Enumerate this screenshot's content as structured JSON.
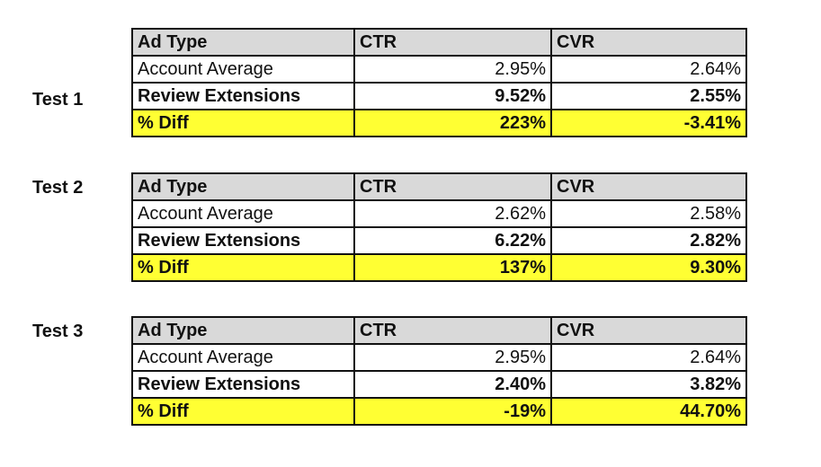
{
  "tests": [
    {
      "label": "Test 1",
      "header": {
        "ad_type": "Ad Type",
        "ctr": "CTR",
        "cvr": "CVR"
      },
      "rows": [
        {
          "ad_type": "Account Average",
          "ctr": "2.95%",
          "cvr": "2.64%"
        },
        {
          "ad_type": "Review Extensions",
          "ctr": "9.52%",
          "cvr": "2.55%"
        },
        {
          "ad_type": "% Diff",
          "ctr": "223%",
          "cvr": "-3.41%"
        }
      ]
    },
    {
      "label": "Test 2",
      "header": {
        "ad_type": "Ad Type",
        "ctr": "CTR",
        "cvr": "CVR"
      },
      "rows": [
        {
          "ad_type": "Account Average",
          "ctr": "2.62%",
          "cvr": "2.58%"
        },
        {
          "ad_type": "Review Extensions",
          "ctr": "6.22%",
          "cvr": "2.82%"
        },
        {
          "ad_type": "% Diff",
          "ctr": "137%",
          "cvr": "9.30%"
        }
      ]
    },
    {
      "label": "Test 3",
      "header": {
        "ad_type": "Ad Type",
        "ctr": "CTR",
        "cvr": "CVR"
      },
      "rows": [
        {
          "ad_type": "Account Average",
          "ctr": "2.95%",
          "cvr": "2.64%"
        },
        {
          "ad_type": "Review Extensions",
          "ctr": "2.40%",
          "cvr": "3.82%"
        },
        {
          "ad_type": "% Diff",
          "ctr": "-19%",
          "cvr": "44.70%"
        }
      ]
    }
  ],
  "colors": {
    "header_bg": "#d9d9d9",
    "diff_highlight": "#ffff33",
    "border": "#111111"
  }
}
